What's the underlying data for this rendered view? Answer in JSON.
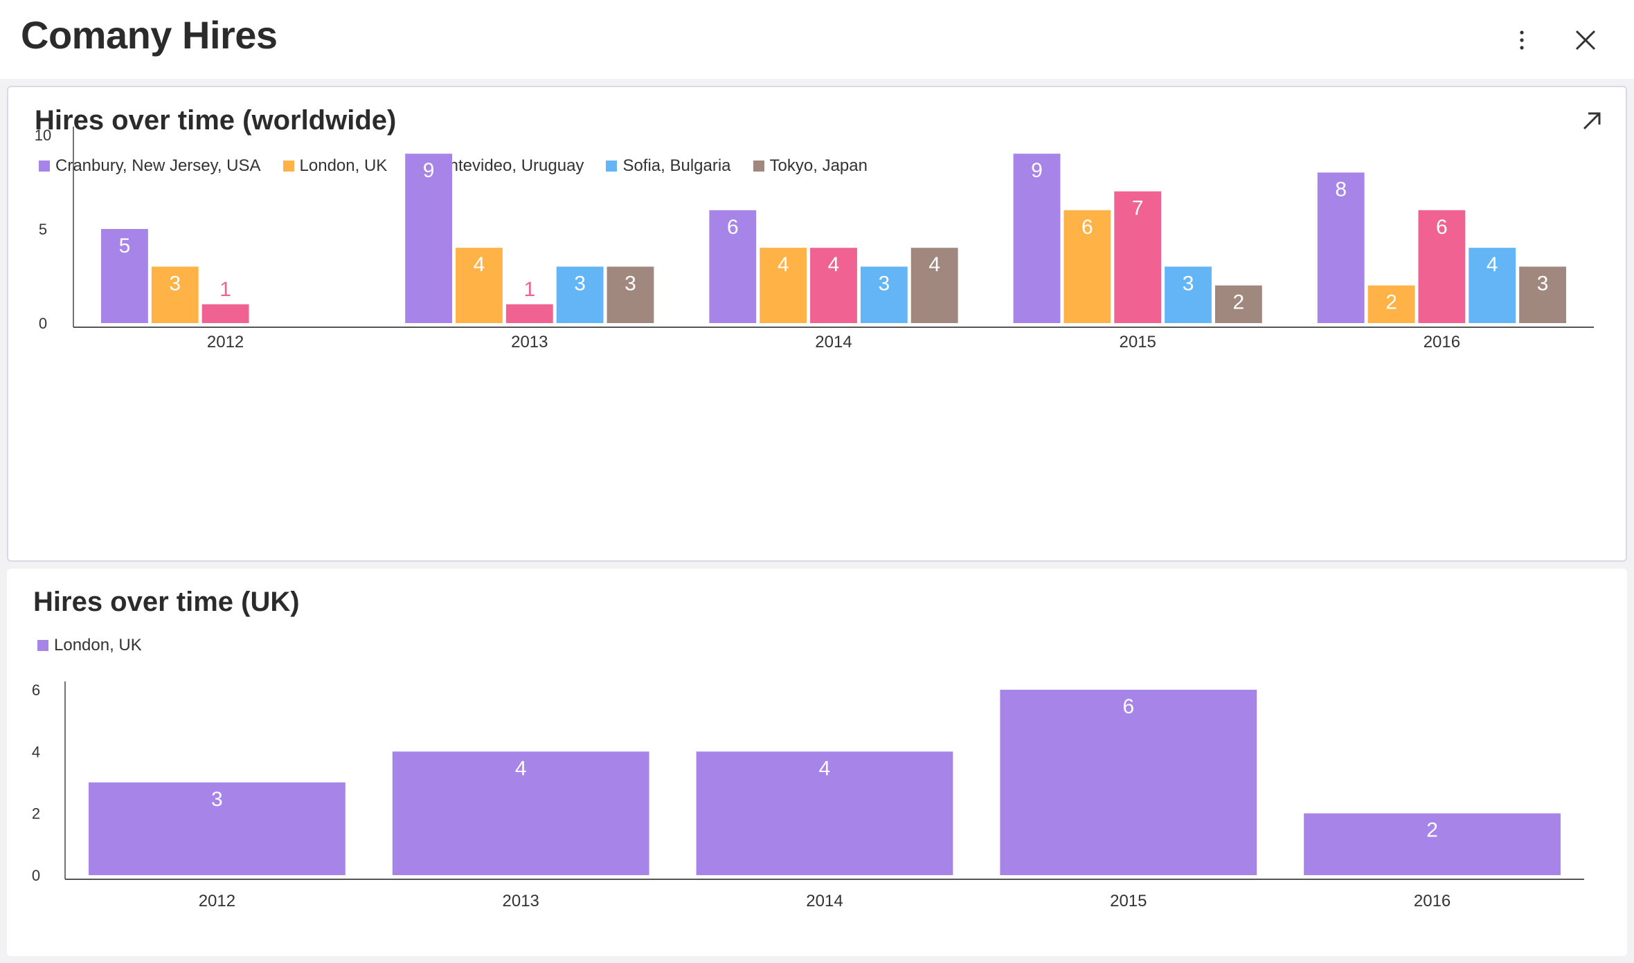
{
  "header": {
    "title": "Comany Hires",
    "more_icon": "more-vertical-icon",
    "close_icon": "close-icon"
  },
  "charts": [
    {
      "card_title": "Hires over time (worldwide)",
      "expand_icon": "expand-arrow-icon",
      "chart_data": {
        "type": "bar",
        "title": "Hires over time (worldwide)",
        "categories": [
          "2012",
          "2013",
          "2014",
          "2015",
          "2016"
        ],
        "series": [
          {
            "name": "Cranbury, New Jersey, USA",
            "color": "#a784e8",
            "values": [
              5,
              9,
              6,
              9,
              8
            ]
          },
          {
            "name": "London, UK",
            "color": "#ffb347",
            "values": [
              3,
              4,
              4,
              6,
              2
            ]
          },
          {
            "name": "Montevideo, Uruguay",
            "color": "#f06292",
            "values": [
              1,
              1,
              4,
              7,
              6
            ]
          },
          {
            "name": "Sofia, Bulgaria",
            "color": "#64b5f6",
            "values": [
              null,
              3,
              3,
              3,
              4
            ]
          },
          {
            "name": "Tokyo, Japan",
            "color": "#a1887f",
            "values": [
              null,
              3,
              4,
              2,
              3
            ]
          }
        ],
        "yticks": [
          0,
          5,
          10
        ],
        "ylim": [
          0,
          10
        ],
        "legend": "top-left",
        "grid": false
      }
    },
    {
      "card_title": "Hires over time (UK)",
      "chart_data": {
        "type": "bar",
        "title": "Hires over time (UK)",
        "categories": [
          "2012",
          "2013",
          "2014",
          "2015",
          "2016"
        ],
        "series": [
          {
            "name": "London, UK",
            "color": "#a784e8",
            "values": [
              3,
              4,
              4,
              6,
              2
            ]
          }
        ],
        "yticks": [
          0,
          2,
          4,
          6
        ],
        "ylim": [
          0,
          6
        ],
        "legend": "top-left",
        "grid": false
      }
    }
  ]
}
